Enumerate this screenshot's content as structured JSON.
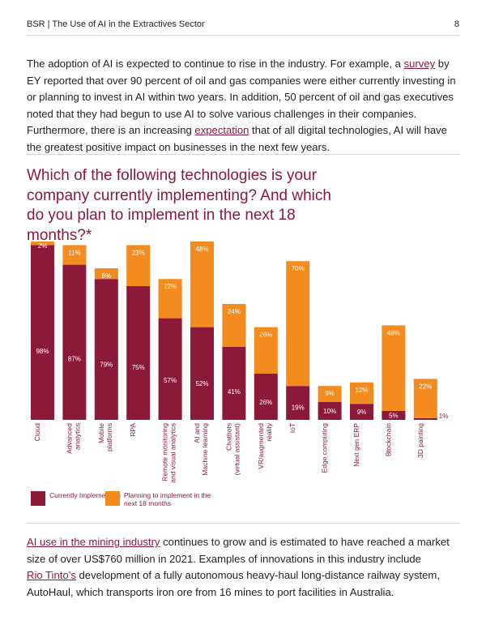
{
  "header": {
    "doc_title": "BSR | The Use of AI in the Extractives Sector",
    "page_number": "8"
  },
  "intro": {
    "before_survey": "The adoption of AI is expected to continue to rise in the industry. For example, a ",
    "survey_link": "survey",
    "after_survey": " by EY reported that over 90 percent of oil and gas companies were either currently investing in or planning to invest in AI within two years. In addition, 50 percent of oil and gas executives noted that they had begun to use AI to solve various challenges in their companies. Furthermore, there is an increasing ",
    "expectation_link": "expectation",
    "after_expectation": " that of all digital technologies, AI will have the greatest positive impact on businesses in the next few years."
  },
  "chart_question": "Which of the following technologies is your company currently implementing? And which do you plan to implement in the next 18 months?*",
  "colors": {
    "current": "#8b1a3a",
    "planning": "#f38b1f",
    "accent": "#8b1a3a"
  },
  "chart_data": {
    "type": "bar",
    "stacked": true,
    "ylim": [
      0,
      100
    ],
    "categories": [
      "Cloud",
      "Advanced analytics",
      "Mobile platforms",
      "RPA",
      "Remote monitoring and visual analytics",
      "AI and Machine learning",
      "Chatbots (virtual assistant)",
      "VR/augmented reality",
      "IoT",
      "Edge computing",
      "Next gen ERP",
      "Blockchain",
      "3D painting"
    ],
    "category_lines": [
      [
        "Cloud"
      ],
      [
        "Advanced",
        "analytics"
      ],
      [
        "Mobile",
        "platforms"
      ],
      [
        "RPA"
      ],
      [
        "Remote monitoring",
        "and visual analytics"
      ],
      [
        "AI and",
        "Machine learning"
      ],
      [
        "Chatbots",
        "(virtual assistant)"
      ],
      [
        "VR/augmented",
        "reality"
      ],
      [
        "IoT"
      ],
      [
        "Edge computing"
      ],
      [
        "Next gen ERP"
      ],
      [
        "Blockchain"
      ],
      [
        "3D painting"
      ]
    ],
    "series": [
      {
        "name": "Currently Implementing",
        "values": [
          98,
          87,
          79,
          75,
          57,
          52,
          41,
          26,
          19,
          10,
          9,
          5,
          1
        ],
        "labels": [
          "98%",
          "87%",
          "79%",
          "75%",
          "57%",
          "52%",
          "41%",
          "26%",
          "19%",
          "10%",
          "9%",
          "5%",
          "1%"
        ]
      },
      {
        "name": "Planning to implement in the next 18 months",
        "values": [
          2,
          11,
          6,
          23,
          22,
          48,
          24,
          26,
          70,
          9,
          12,
          48,
          22
        ],
        "labels": [
          "2%",
          "11%",
          "6%",
          "23%",
          "22%",
          "48%",
          "24%",
          "26%",
          "70%",
          "9%",
          "12%",
          "48%",
          "22%"
        ]
      }
    ]
  },
  "legend": {
    "current_label": "Currently Implementing",
    "planning_label": "Planning to implement in the next 18 months"
  },
  "closing": {
    "mining_link": "AI use in the mining industry",
    "after_mining": " continues to grow and is estimated to have reached a market size of over US$760 million in 2021. Examples of innovations in this industry include",
    "rio_link": "Rio Tinto’s",
    "after_rio": " development of a fully autonomous heavy-haul long-distance railway system, AutoHaul, which transports iron ore from 16 mines to port facilities in Australia."
  }
}
